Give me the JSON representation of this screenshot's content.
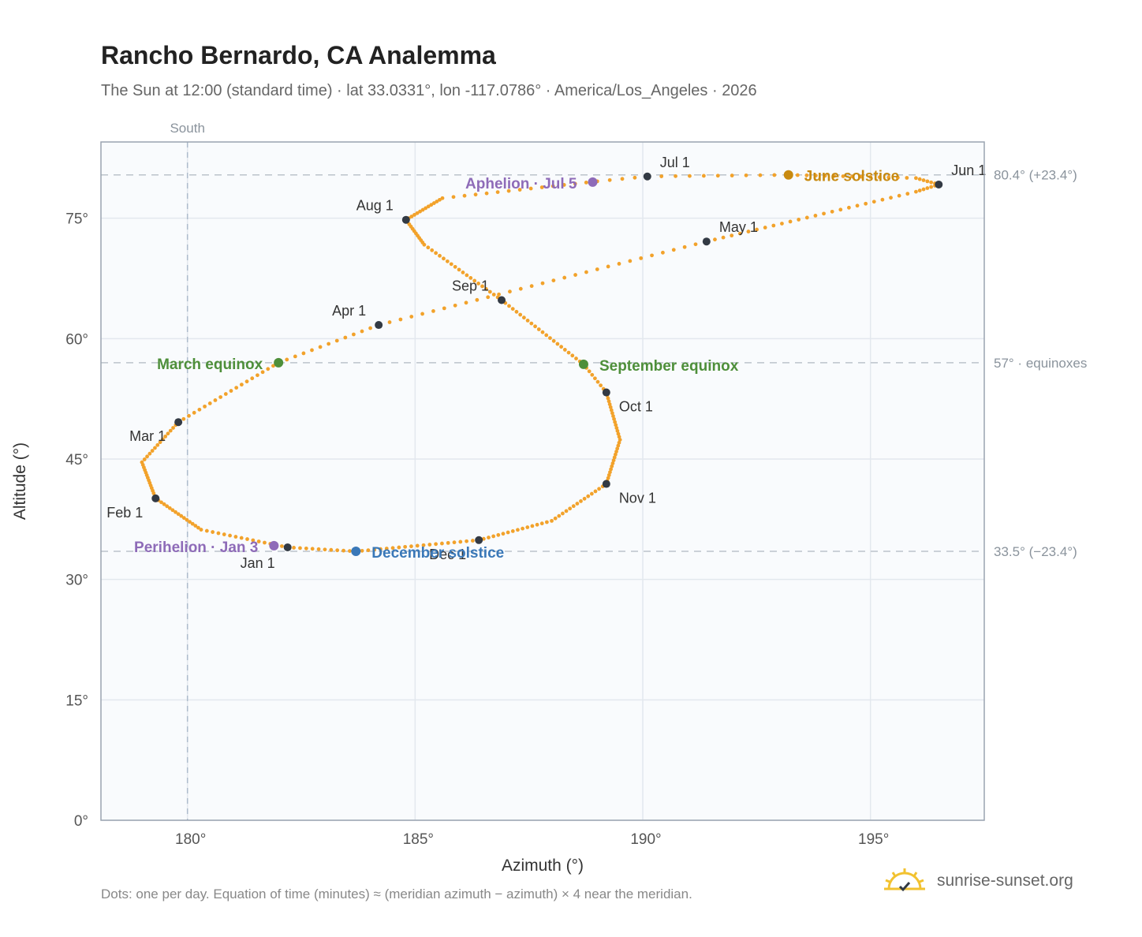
{
  "page": {
    "title": "Rancho Bernardo, CA Analemma",
    "subtitle": "The Sun at 12:00 (standard time) · lat 33.0331°, lon -117.0786° · America/Los_Angeles · 2026",
    "footnote": "Dots: one per day. Equation of time (minutes) ≈ (meridian azimuth − azimuth) × 4 near the meridian.",
    "brand": "sunrise-sunset.org",
    "brand_icon": "sun-logo-icon"
  },
  "chart_data": {
    "type": "scatter",
    "xlabel": "Azimuth (°)",
    "ylabel": "Altitude (°)",
    "xlim": [
      178.1,
      197.5
    ],
    "ylim": [
      0,
      84.5
    ],
    "xticks": [
      {
        "v": 180,
        "label": "180°"
      },
      {
        "v": 185,
        "label": "185°"
      },
      {
        "v": 190,
        "label": "190°"
      },
      {
        "v": 195,
        "label": "195°"
      }
    ],
    "yticks": [
      {
        "v": 0,
        "label": "0°"
      },
      {
        "v": 15,
        "label": "15°"
      },
      {
        "v": 30,
        "label": "30°"
      },
      {
        "v": 45,
        "label": "45°"
      },
      {
        "v": 60,
        "label": "60°"
      },
      {
        "v": 75,
        "label": "75°"
      }
    ],
    "grid": true,
    "south_line": {
      "x": 180,
      "label": "South"
    },
    "ref_lines": [
      {
        "y": 80.4,
        "label": "80.4° (+23.4°)"
      },
      {
        "y": 57,
        "label": "57° · equinoxes"
      },
      {
        "y": 33.5,
        "label": "33.5° (−23.4°)"
      }
    ],
    "analemma_path": [
      {
        "doy": 1,
        "az": 182.2,
        "alt": 34.0
      },
      {
        "doy": 16,
        "az": 180.3,
        "alt": 36.2
      },
      {
        "doy": 32,
        "az": 179.3,
        "alt": 40.1
      },
      {
        "doy": 46,
        "az": 179.0,
        "alt": 44.6
      },
      {
        "doy": 60,
        "az": 179.8,
        "alt": 49.6
      },
      {
        "doy": 79,
        "az": 182.0,
        "alt": 57.0
      },
      {
        "doy": 91,
        "az": 184.2,
        "alt": 61.7
      },
      {
        "doy": 121,
        "az": 191.4,
        "alt": 72.1
      },
      {
        "doy": 146,
        "az": 196.0,
        "alt": 78.3
      },
      {
        "doy": 152,
        "az": 196.5,
        "alt": 79.2
      },
      {
        "doy": 158,
        "az": 196.0,
        "alt": 80.0
      },
      {
        "doy": 172,
        "az": 193.2,
        "alt": 80.4
      },
      {
        "doy": 182,
        "az": 190.1,
        "alt": 80.2
      },
      {
        "doy": 186,
        "az": 189.0,
        "alt": 79.6
      },
      {
        "doy": 200,
        "az": 185.6,
        "alt": 77.5
      },
      {
        "doy": 213,
        "az": 184.8,
        "alt": 74.8
      },
      {
        "doy": 224,
        "az": 185.2,
        "alt": 71.7
      },
      {
        "doy": 244,
        "az": 186.9,
        "alt": 64.8
      },
      {
        "doy": 266,
        "az": 188.7,
        "alt": 56.8
      },
      {
        "doy": 274,
        "az": 189.2,
        "alt": 53.3
      },
      {
        "doy": 290,
        "az": 189.5,
        "alt": 47.4
      },
      {
        "doy": 305,
        "az": 189.2,
        "alt": 41.9
      },
      {
        "doy": 320,
        "az": 188.0,
        "alt": 37.3
      },
      {
        "doy": 335,
        "az": 186.4,
        "alt": 34.9
      },
      {
        "doy": 355,
        "az": 183.7,
        "alt": 33.5
      },
      {
        "doy": 366,
        "az": 182.2,
        "alt": 34.0
      }
    ],
    "month_points": [
      {
        "label": "Jan 1",
        "az": 182.2,
        "alt": 34.0,
        "anchor": "end",
        "dx": -16,
        "dy": 26
      },
      {
        "label": "Feb 1",
        "az": 179.3,
        "alt": 40.1,
        "anchor": "end",
        "dx": -16,
        "dy": 24
      },
      {
        "label": "Mar 1",
        "az": 179.8,
        "alt": 49.6,
        "anchor": "end",
        "dx": -16,
        "dy": 24
      },
      {
        "label": "Apr 1",
        "az": 184.2,
        "alt": 61.7,
        "anchor": "end",
        "dx": -16,
        "dy": -12
      },
      {
        "label": "May 1",
        "az": 191.4,
        "alt": 72.1,
        "anchor": "start",
        "dx": 16,
        "dy": -12
      },
      {
        "label": "Jun 1",
        "az": 196.5,
        "alt": 79.2,
        "anchor": "start",
        "dx": 16,
        "dy": -12
      },
      {
        "label": "Jul 1",
        "az": 190.1,
        "alt": 80.2,
        "anchor": "start",
        "dx": 16,
        "dy": -12
      },
      {
        "label": "Aug 1",
        "az": 184.8,
        "alt": 74.8,
        "anchor": "end",
        "dx": -16,
        "dy": -12
      },
      {
        "label": "Sep 1",
        "az": 186.9,
        "alt": 64.8,
        "anchor": "end",
        "dx": -16,
        "dy": -12
      },
      {
        "label": "Oct 1",
        "az": 189.2,
        "alt": 53.3,
        "anchor": "start",
        "dx": 16,
        "dy": 24
      },
      {
        "label": "Nov 1",
        "az": 189.2,
        "alt": 41.9,
        "anchor": "start",
        "dx": 16,
        "dy": 24
      },
      {
        "label": "Dec 1",
        "az": 186.4,
        "alt": 34.9,
        "anchor": "end",
        "dx": -16,
        "dy": 24
      }
    ],
    "special_points": [
      {
        "label": "March equinox",
        "az": 182.0,
        "alt": 57.0,
        "color": "#4e8f3a",
        "anchor": "end",
        "dx": -20,
        "dy": 8
      },
      {
        "label": "September equinox",
        "az": 188.7,
        "alt": 56.8,
        "color": "#4e8f3a",
        "anchor": "start",
        "dx": 20,
        "dy": 8
      },
      {
        "label": "June solstice",
        "az": 193.2,
        "alt": 80.4,
        "color": "#c88a10",
        "anchor": "start",
        "dx": 20,
        "dy": 8
      },
      {
        "label": "December solstice",
        "az": 183.7,
        "alt": 33.5,
        "color": "#3a78b8",
        "anchor": "start",
        "dx": 20,
        "dy": 8
      },
      {
        "label": "Aphelion · Jul 5",
        "az": 188.9,
        "alt": 79.5,
        "color": "#8e6bb8",
        "anchor": "end",
        "dx": -20,
        "dy": 8
      },
      {
        "label": "Perihelion · Jan 3",
        "az": 181.9,
        "alt": 34.2,
        "color": "#8e6bb8",
        "anchor": "end",
        "dx": -20,
        "dy": 8
      }
    ],
    "colors": {
      "dots": "#f2a22b",
      "month_dot": "#333a44",
      "grid": "#e3e8ee",
      "ref": "#bcc3cb",
      "plot_bg": "#f9fbfd"
    }
  }
}
